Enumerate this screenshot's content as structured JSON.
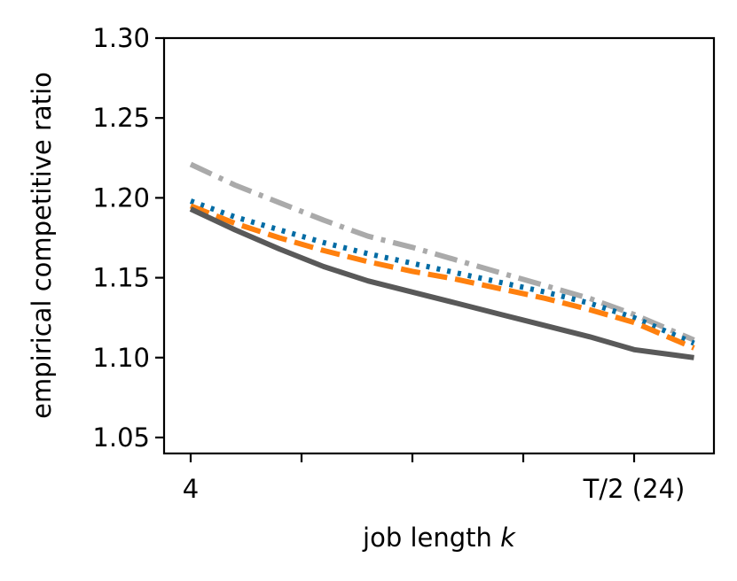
{
  "chart_data": {
    "type": "line",
    "xlabel": "job length ",
    "xlabel_var": "k",
    "ylabel": "empirical competitive ratio",
    "x_ticks": [
      {
        "x": 4,
        "label": "4"
      },
      {
        "x": 9,
        "label": ""
      },
      {
        "x": 14,
        "label": ""
      },
      {
        "x": 19,
        "label": ""
      },
      {
        "x": 24,
        "label": "T/2 (24)"
      }
    ],
    "xlim": [
      2.8,
      27.6
    ],
    "ylim": [
      1.04,
      1.3
    ],
    "y_ticks": [
      "1.05",
      "1.10",
      "1.15",
      "1.20",
      "1.25",
      "1.30"
    ],
    "grid": false,
    "legend": false,
    "series": [
      {
        "color": "#aaaaaa",
        "dash": "dashdot",
        "x": [
          4,
          6,
          8,
          10,
          12,
          14,
          16,
          18,
          20,
          22,
          24,
          26.7
        ],
        "y": [
          1.221,
          1.208,
          1.197,
          1.186,
          1.176,
          1.169,
          1.161,
          1.153,
          1.145,
          1.137,
          1.127,
          1.111
        ]
      },
      {
        "color": "#006ba4",
        "dash": "dotted",
        "x": [
          4,
          6,
          8,
          10,
          12,
          14,
          16,
          18,
          20,
          22,
          24,
          26.7
        ],
        "y": [
          1.198,
          1.188,
          1.18,
          1.172,
          1.165,
          1.159,
          1.153,
          1.147,
          1.141,
          1.134,
          1.125,
          1.109
        ]
      },
      {
        "color": "#ff800e",
        "dash": "dashed",
        "x": [
          4,
          6,
          8,
          10,
          12,
          14,
          16,
          18,
          20,
          22,
          24,
          26.7
        ],
        "y": [
          1.195,
          1.184,
          1.175,
          1.167,
          1.16,
          1.154,
          1.149,
          1.143,
          1.137,
          1.13,
          1.122,
          1.106
        ]
      },
      {
        "color": "#595959",
        "dash": "solid",
        "x": [
          4,
          6,
          8,
          10,
          12,
          14,
          16,
          18,
          20,
          22,
          24,
          26.7
        ],
        "y": [
          1.193,
          1.18,
          1.168,
          1.157,
          1.148,
          1.141,
          1.134,
          1.127,
          1.12,
          1.113,
          1.105,
          1.1
        ]
      }
    ]
  }
}
